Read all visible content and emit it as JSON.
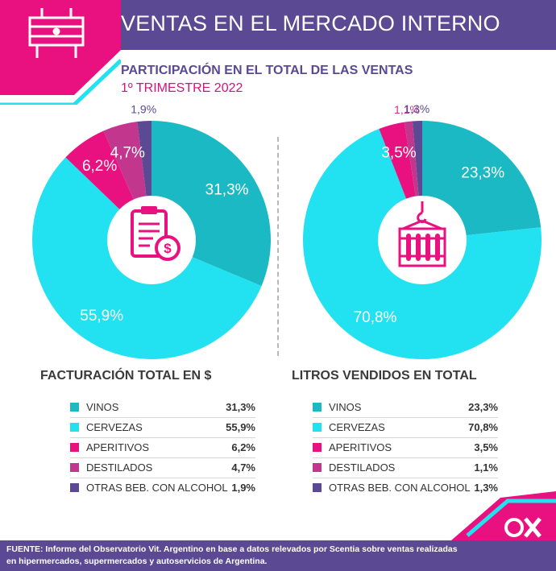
{
  "header": {
    "title": "VENTAS EN EL MERCADO INTERNO"
  },
  "subtitle": "PARTICIPACIÓN EN EL TOTAL DE LAS VENTAS",
  "period": "1º TRIMESTRE 2022",
  "colors": {
    "purple": "#5b4a93",
    "magenta": "#e8117f",
    "teal": "#1bb9c3",
    "cyan": "#22e1f0",
    "plum": "#c2368e",
    "violet": "#5b4a93"
  },
  "chart_data": [
    {
      "type": "pie",
      "title": "FACTURACIÓN TOTAL EN $",
      "icon": "invoice-dollar-icon",
      "categories": [
        "VINOS",
        "CERVEZAS",
        "APERITIVOS",
        "DESTILADOS",
        "OTRAS BEB. CON ALCOHOL"
      ],
      "values": [
        31.3,
        55.9,
        6.2,
        4.7,
        1.9
      ],
      "labels": [
        "31,3%",
        "55,9%",
        "6,2%",
        "4,7%",
        "1,9%"
      ],
      "colors": [
        "#1bb9c3",
        "#22e1f0",
        "#e8117f",
        "#c2368e",
        "#5b4a93"
      ]
    },
    {
      "type": "pie",
      "title": "LITROS VENDIDOS EN TOTAL",
      "icon": "crane-bottles-icon",
      "categories": [
        "VINOS",
        "CERVEZAS",
        "APERITIVOS",
        "DESTILADOS",
        "OTRAS BEB. CON ALCOHOL"
      ],
      "values": [
        23.3,
        70.8,
        3.5,
        1.1,
        1.3
      ],
      "labels": [
        "23,3%",
        "70,8%",
        "3,5%",
        "1,1%",
        "1,3%"
      ],
      "colors": [
        "#1bb9c3",
        "#22e1f0",
        "#e8117f",
        "#c2368e",
        "#5b4a93"
      ]
    }
  ],
  "footer": {
    "source_label": "FUENTE:",
    "source_text": "Informe del Observatorio Vit. Argentino en base a datos relevados por Scentia sobre ventas realizadas en hipermercados, supermercados y autoservicios de Argentina."
  }
}
